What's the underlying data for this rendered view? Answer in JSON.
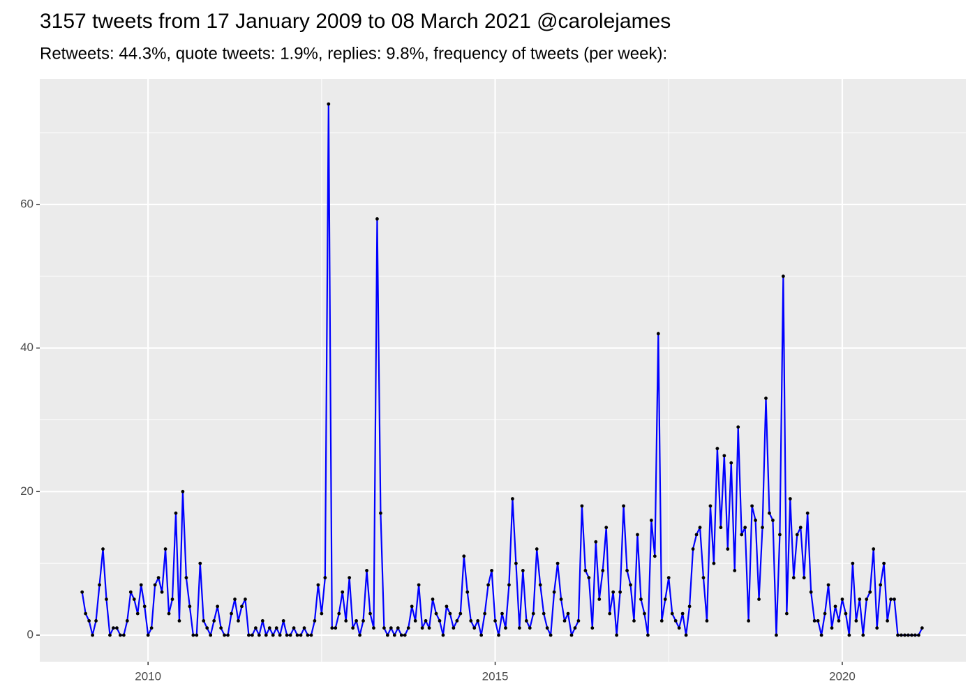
{
  "chart_data": {
    "type": "line",
    "title": "3157 tweets from 17 January 2009 to 08 March 2021 @carolejames",
    "subtitle": "Retweets: 44.3%, quote tweets: 1.9%, replies: 9.8%, frequency of tweets (per week):",
    "line_color": "#0000ff",
    "point_color": "#000000",
    "xlim": [
      2008.44,
      2021.78
    ],
    "xticks": [
      2010,
      2015,
      2020
    ],
    "xminorticks": [
      2012.5,
      2017.5
    ],
    "ylim": [
      -3.7,
      77.5
    ],
    "yticks": [
      0,
      20,
      40,
      60
    ],
    "yminorticks": [
      10,
      30,
      50,
      70
    ],
    "grid": true,
    "x": [
      2009.05,
      2009.1,
      2009.15,
      2009.2,
      2009.25,
      2009.3,
      2009.35,
      2009.4,
      2009.45,
      2009.5,
      2009.55,
      2009.6,
      2009.65,
      2009.7,
      2009.75,
      2009.8,
      2009.85,
      2009.9,
      2009.95,
      2010,
      2010.05,
      2010.1,
      2010.15,
      2010.2,
      2010.25,
      2010.3,
      2010.35,
      2010.4,
      2010.45,
      2010.5,
      2010.55,
      2010.6,
      2010.65,
      2010.7,
      2010.75,
      2010.8,
      2010.85,
      2010.9,
      2010.95,
      2011,
      2011.05,
      2011.1,
      2011.15,
      2011.2,
      2011.25,
      2011.3,
      2011.35,
      2011.4,
      2011.45,
      2011.5,
      2011.55,
      2011.6,
      2011.65,
      2011.7,
      2011.75,
      2011.8,
      2011.85,
      2011.9,
      2011.95,
      2012,
      2012.05,
      2012.1,
      2012.15,
      2012.2,
      2012.25,
      2012.3,
      2012.35,
      2012.4,
      2012.45,
      2012.5,
      2012.55,
      2012.6,
      2012.65,
      2012.7,
      2012.75,
      2012.8,
      2012.85,
      2012.9,
      2012.95,
      2013,
      2013.05,
      2013.1,
      2013.15,
      2013.2,
      2013.25,
      2013.3,
      2013.35,
      2013.4,
      2013.45,
      2013.5,
      2013.55,
      2013.6,
      2013.65,
      2013.7,
      2013.75,
      2013.8,
      2013.85,
      2013.9,
      2013.95,
      2014,
      2014.05,
      2014.1,
      2014.15,
      2014.2,
      2014.25,
      2014.3,
      2014.35,
      2014.4,
      2014.45,
      2014.5,
      2014.55,
      2014.6,
      2014.65,
      2014.7,
      2014.75,
      2014.8,
      2014.85,
      2014.9,
      2014.95,
      2015,
      2015.05,
      2015.1,
      2015.15,
      2015.2,
      2015.25,
      2015.3,
      2015.35,
      2015.4,
      2015.45,
      2015.5,
      2015.55,
      2015.6,
      2015.65,
      2015.7,
      2015.75,
      2015.8,
      2015.85,
      2015.9,
      2015.95,
      2016,
      2016.05,
      2016.1,
      2016.15,
      2016.2,
      2016.25,
      2016.3,
      2016.35,
      2016.4,
      2016.45,
      2016.5,
      2016.55,
      2016.6,
      2016.65,
      2016.7,
      2016.75,
      2016.8,
      2016.85,
      2016.9,
      2016.95,
      2017,
      2017.05,
      2017.1,
      2017.15,
      2017.2,
      2017.25,
      2017.3,
      2017.35,
      2017.4,
      2017.45,
      2017.5,
      2017.55,
      2017.6,
      2017.65,
      2017.7,
      2017.75,
      2017.8,
      2017.85,
      2017.9,
      2017.95,
      2018,
      2018.05,
      2018.1,
      2018.15,
      2018.2,
      2018.25,
      2018.3,
      2018.35,
      2018.4,
      2018.45,
      2018.5,
      2018.55,
      2018.6,
      2018.65,
      2018.7,
      2018.75,
      2018.8,
      2018.85,
      2018.9,
      2018.95,
      2019,
      2019.05,
      2019.1,
      2019.15,
      2019.2,
      2019.25,
      2019.3,
      2019.35,
      2019.4,
      2019.45,
      2019.5,
      2019.55,
      2019.6,
      2019.65,
      2019.7,
      2019.75,
      2019.8,
      2019.85,
      2019.9,
      2019.95,
      2020,
      2020.05,
      2020.1,
      2020.15,
      2020.2,
      2020.25,
      2020.3,
      2020.35,
      2020.4,
      2020.45,
      2020.5,
      2020.55,
      2020.6,
      2020.65,
      2020.7,
      2020.75,
      2020.8,
      2020.85,
      2020.9,
      2020.95,
      2021,
      2021.05,
      2021.1,
      2021.15
    ],
    "values": [
      6,
      3,
      2,
      0,
      2,
      7,
      12,
      5,
      0,
      1,
      1,
      0,
      0,
      2,
      6,
      5,
      3,
      7,
      4,
      0,
      1,
      7,
      8,
      6,
      12,
      3,
      5,
      17,
      2,
      20,
      8,
      4,
      0,
      0,
      10,
      2,
      1,
      0,
      2,
      4,
      1,
      0,
      0,
      3,
      5,
      2,
      4,
      5,
      0,
      0,
      1,
      0,
      2,
      0,
      1,
      0,
      1,
      0,
      2,
      0,
      0,
      1,
      0,
      0,
      1,
      0,
      0,
      2,
      7,
      3,
      8,
      74,
      1,
      1,
      3,
      6,
      2,
      8,
      1,
      2,
      0,
      2,
      9,
      3,
      1,
      58,
      17,
      1,
      0,
      1,
      0,
      1,
      0,
      0,
      1,
      4,
      2,
      7,
      1,
      2,
      1,
      5,
      3,
      2,
      0,
      4,
      3,
      1,
      2,
      3,
      11,
      6,
      2,
      1,
      2,
      0,
      3,
      7,
      9,
      2,
      0,
      3,
      1,
      7,
      19,
      10,
      1,
      9,
      2,
      1,
      3,
      12,
      7,
      3,
      1,
      0,
      6,
      10,
      5,
      2,
      3,
      0,
      1,
      2,
      18,
      9,
      8,
      1,
      13,
      5,
      9,
      15,
      3,
      6,
      0,
      6,
      18,
      9,
      7,
      2,
      14,
      5,
      3,
      0,
      16,
      11,
      42,
      2,
      5,
      8,
      3,
      2,
      1,
      3,
      0,
      4,
      12,
      14,
      15,
      8,
      2,
      18,
      10,
      26,
      15,
      25,
      12,
      24,
      9,
      29,
      14,
      15,
      2,
      18,
      16,
      5,
      15,
      33,
      17,
      16,
      0,
      14,
      50,
      3,
      19,
      8,
      14,
      15,
      8,
      17,
      6,
      2,
      2,
      0,
      3,
      7,
      1,
      4,
      2,
      5,
      3,
      0,
      10,
      2,
      5,
      0,
      5,
      6,
      12,
      1,
      7,
      10,
      2,
      5,
      5,
      0,
      0,
      0,
      0,
      0,
      0,
      0,
      1
    ]
  }
}
